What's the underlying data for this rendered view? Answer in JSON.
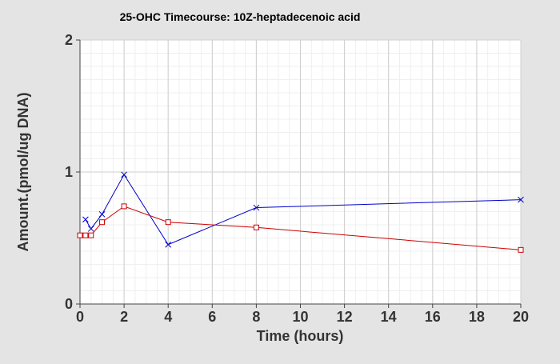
{
  "chart_data": {
    "type": "line",
    "title": "25-OHC Timecourse: 10Z-heptadecenoic acid",
    "xlabel": "Time (hours)",
    "ylabel": "Amount.(pmol/ug DNA)",
    "xlim": [
      0,
      20
    ],
    "ylim": [
      0,
      2
    ],
    "xticks": [
      0,
      2,
      4,
      6,
      8,
      10,
      12,
      14,
      16,
      18,
      20
    ],
    "yticks": [
      0,
      1,
      2
    ],
    "grid": true,
    "series": [
      {
        "color": "#0000cc",
        "marker": "x",
        "x": [
          0.25,
          0.5,
          1,
          2,
          4,
          8,
          20
        ],
        "y": [
          0.64,
          0.57,
          0.68,
          0.98,
          0.45,
          0.73,
          0.79
        ]
      },
      {
        "color": "#cc0000",
        "marker": "square",
        "x": [
          0,
          0.25,
          0.5,
          1,
          2,
          4,
          8,
          20
        ],
        "y": [
          0.52,
          0.52,
          0.52,
          0.62,
          0.74,
          0.62,
          0.58,
          0.41
        ]
      }
    ]
  }
}
